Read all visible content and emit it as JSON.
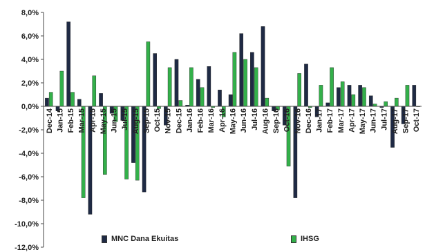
{
  "chart_data": {
    "type": "bar",
    "categories": [
      "Dec-14",
      "Jan-15",
      "Feb-15",
      "Mar-15",
      "Apr-15",
      "May-15",
      "Jun-15",
      "Jul-15",
      "Aug-15",
      "Sep-15",
      "Oct-15",
      "Nov-15",
      "Dec-15",
      "Jan-16",
      "Feb-16",
      "Mar-16",
      "Apr-16",
      "May-16",
      "Jun-16",
      "Jul-16",
      "Aug-16",
      "Sep-16",
      "Oct-16",
      "Nov-16",
      "Dec-16",
      "Jan-17",
      "Feb-17",
      "Mar-17",
      "Apr-17",
      "May-17",
      "Jun-17",
      "Jul-17",
      "Aug-17",
      "Sep-17",
      "Oct-17"
    ],
    "series": [
      {
        "name": "MNC Dana Ekuitas",
        "color": "#1f2a44",
        "values": [
          0.7,
          -0.4,
          7.2,
          0.6,
          -9.2,
          1.1,
          -0.6,
          -1.2,
          -4.8,
          -7.3,
          4.5,
          -1.6,
          4.0,
          0.1,
          2.3,
          3.4,
          1.4,
          1.0,
          6.2,
          4.6,
          6.8,
          -0.4,
          -1.6,
          -7.8,
          3.6,
          -0.9,
          0.3,
          1.6,
          1.8,
          1.8,
          0.9,
          -0.1,
          -3.5,
          -1.5,
          1.8
        ]
      },
      {
        "name": "IHSG",
        "color": "#33b04a",
        "values": [
          1.2,
          3.0,
          1.2,
          -7.8,
          2.6,
          -5.8,
          -1.3,
          -6.2,
          -6.3,
          5.5,
          -0.2,
          3.3,
          0.5,
          3.3,
          1.6,
          -0.1,
          -0.9,
          4.6,
          4.0,
          3.3,
          0.7,
          -0.3,
          -5.1,
          2.8,
          -0.1,
          1.8,
          3.3,
          2.1,
          1.0,
          1.6,
          0.2,
          0.4,
          0.7,
          1.8,
          0.0
        ]
      }
    ],
    "yticks": [
      "8,0%",
      "6,0%",
      "4,0%",
      "2,0%",
      "0,0%",
      "-2,0%",
      "-4,0%",
      "-6,0%",
      "-8,0%",
      "-10,0%",
      "-12,0%"
    ],
    "ylim": [
      -12,
      8
    ],
    "legend_position": "bottom"
  }
}
